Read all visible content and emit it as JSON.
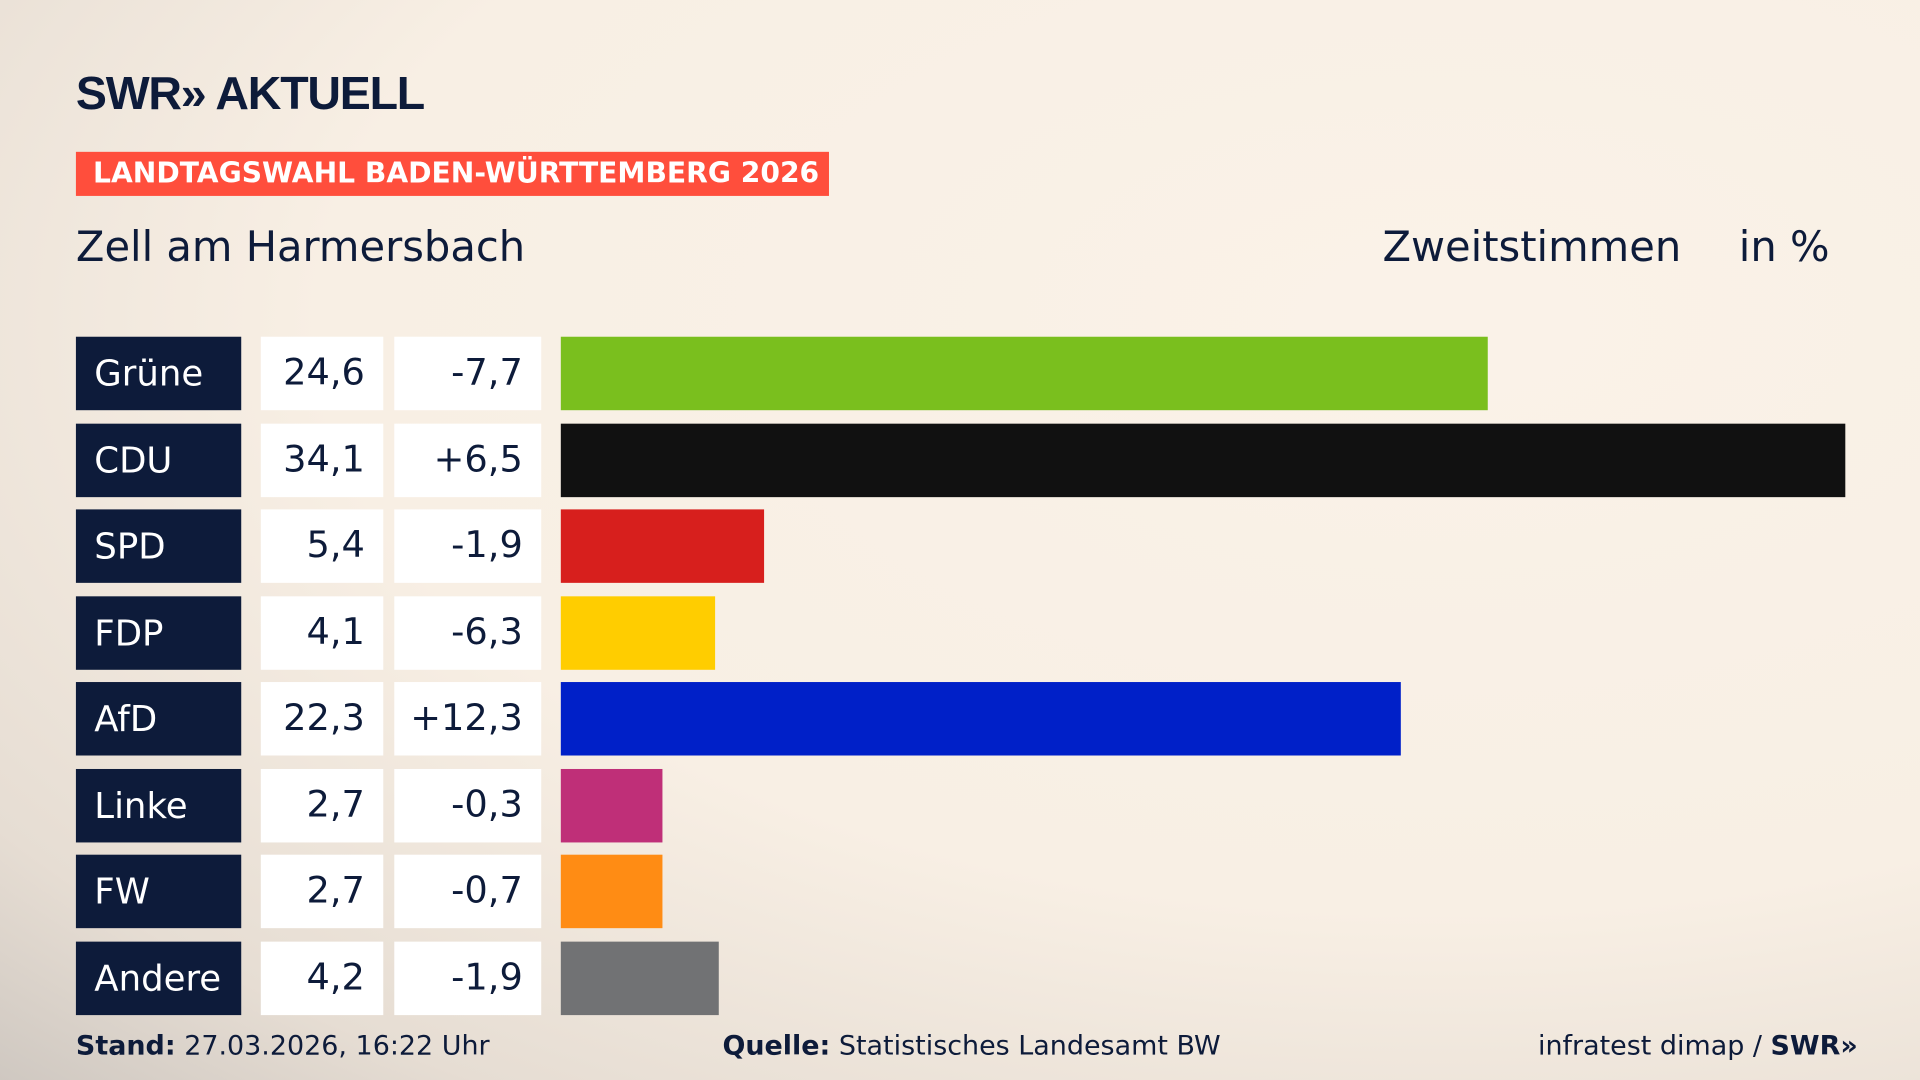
{
  "header": {
    "logo": "SWR» AKTUELL",
    "banner": "LANDTAGSWAHL BADEN-WÜRTTEMBERG 2026",
    "location": "Zell am Harmersbach",
    "vote_type": "Zweitstimmen",
    "unit": "in %"
  },
  "chart_data": {
    "type": "bar",
    "orientation": "horizontal",
    "categories": [
      "Grüne",
      "CDU",
      "SPD",
      "FDP",
      "AfD",
      "Linke",
      "FW",
      "Andere"
    ],
    "values": [
      24.6,
      34.1,
      5.4,
      4.1,
      22.3,
      2.7,
      2.7,
      4.2
    ],
    "value_labels": [
      "24,6",
      "34,1",
      "5,4",
      "4,1",
      "22,3",
      "2,7",
      "2,7",
      "4,2"
    ],
    "diff_labels": [
      "-7,7",
      "+6,5",
      "-1,9",
      "-6,3",
      "+12,3",
      "-0,3",
      "-0,7",
      "-1,9"
    ],
    "colors": [
      "#7abf1e",
      "#111111",
      "#d71f1d",
      "#ffcd00",
      "#0020c8",
      "#bf2f78",
      "#ff8c14",
      "#717274"
    ]
  },
  "footer": {
    "stand_label": "Stand:",
    "stand_value": "27.03.2026, 16:22 Uhr",
    "source_label": "Quelle:",
    "source_value": "Statistisches Landesamt BW",
    "credit": "infratest dimap / ",
    "credit_logo": "SWR»"
  }
}
